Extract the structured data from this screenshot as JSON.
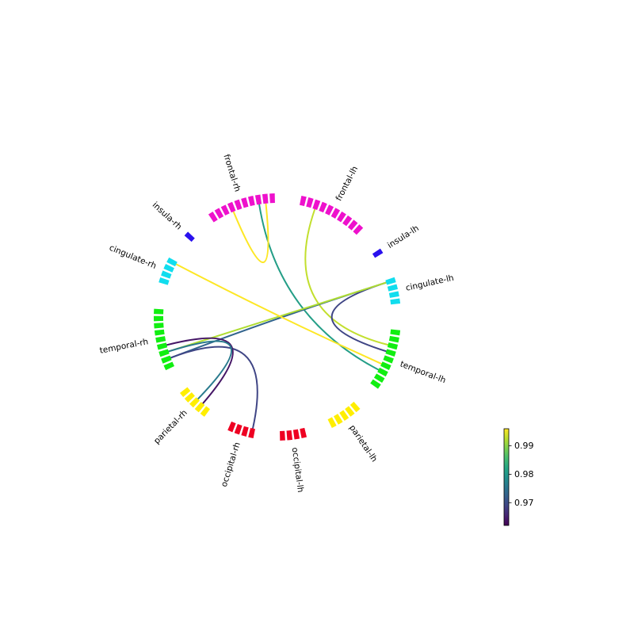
{
  "chart_data": {
    "type": "circular-connectivity",
    "groups": [
      {
        "label": "frontal-lh",
        "color": "#ee11cc",
        "count": 10
      },
      {
        "label": "insula-lh",
        "color": "#2a11ee",
        "count": 1
      },
      {
        "label": "cingulate-lh",
        "color": "#11ddee",
        "count": 4
      },
      {
        "label": "temporal-lh",
        "color": "#11ee11",
        "count": 9
      },
      {
        "label": "parietal-lh",
        "color": "#ffee00",
        "count": 5
      },
      {
        "label": "occipital-lh",
        "color": "#ee0022",
        "count": 4
      },
      {
        "label": "occipital-rh",
        "color": "#ee0022",
        "count": 4
      },
      {
        "label": "parietal-rh",
        "color": "#ffee00",
        "count": 5
      },
      {
        "label": "temporal-rh",
        "color": "#11ee11",
        "count": 9
      },
      {
        "label": "cingulate-rh",
        "color": "#11ddee",
        "count": 4
      },
      {
        "label": "insula-rh",
        "color": "#2a11ee",
        "count": 1
      },
      {
        "label": "frontal-rh",
        "color": "#ee11cc",
        "count": 10
      }
    ],
    "connections": [
      {
        "from": "frontal-lh",
        "from_index": 2,
        "to": "temporal-lh",
        "to_index": 2,
        "value": 0.993
      },
      {
        "from": "frontal-rh",
        "from_index": 7,
        "to": "temporal-lh",
        "to_index": 6,
        "value": 0.981
      },
      {
        "from": "frontal-rh",
        "from_index": 3,
        "to": "frontal-rh",
        "to_index": 8,
        "value": 0.996
      },
      {
        "from": "cingulate-lh",
        "from_index": 0,
        "to": "temporal-lh",
        "to_index": 3,
        "value": 0.969
      },
      {
        "from": "cingulate-lh",
        "from_index": 0,
        "to": "temporal-rh",
        "to_index": 1,
        "value": 0.973
      },
      {
        "from": "cingulate-lh",
        "from_index": 0,
        "to": "temporal-rh",
        "to_index": 2,
        "value": 0.992
      },
      {
        "from": "cingulate-rh",
        "from_index": 3,
        "to": "temporal-lh",
        "to_index": 5,
        "value": 0.996
      },
      {
        "from": "occipital-rh",
        "from_index": 0,
        "to": "temporal-rh",
        "to_index": 1,
        "value": 0.969
      },
      {
        "from": "parietal-rh",
        "from_index": 1,
        "to": "temporal-rh",
        "to_index": 3,
        "value": 0.964
      },
      {
        "from": "parietal-rh",
        "from_index": 2,
        "to": "temporal-rh",
        "to_index": 2,
        "value": 0.976
      }
    ],
    "colorbar": {
      "colormap": "viridis",
      "vmin": 0.962,
      "vmax": 0.996,
      "ticks": [
        0.97,
        0.98,
        0.99
      ],
      "tick_labels": [
        "0.97",
        "0.98",
        "0.99"
      ]
    },
    "title": "",
    "legend": "none"
  }
}
